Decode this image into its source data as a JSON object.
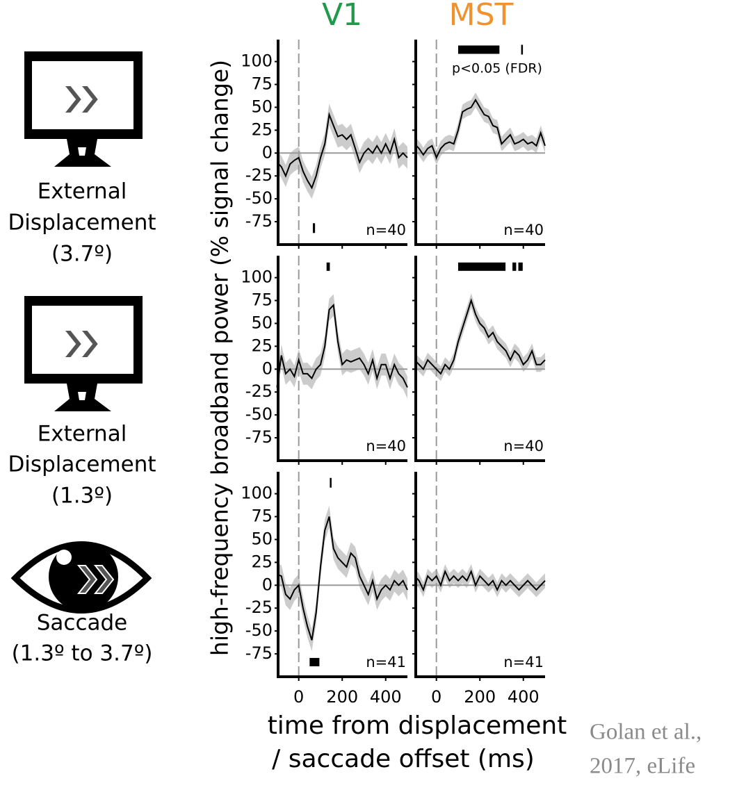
{
  "column_titles": [
    {
      "text": "V1",
      "color": "#1f9a4b"
    },
    {
      "text": "MST",
      "color": "#f0922e"
    }
  ],
  "row_labels": [
    [
      "External",
      "Displacement",
      "(3.7º)"
    ],
    [
      "External",
      "Displacement",
      "(1.3º)"
    ],
    [
      "Saccade",
      "(1.3º to 3.7º)"
    ]
  ],
  "y_label": "high-frequency broadband power (% signal change)",
  "x_label": [
    "time from displacement",
    "/ saccade offset (ms)"
  ],
  "citation": [
    "Golan et al.,",
    "2017, eLife"
  ],
  "chart_data": [
    {
      "type": "line",
      "annotation": "n=40",
      "color": "#000000",
      "band_color": "#cccccc",
      "x": [
        -100,
        -80,
        -60,
        -40,
        -20,
        0,
        20,
        40,
        60,
        80,
        100,
        120,
        140,
        160,
        180,
        200,
        220,
        240,
        260,
        280,
        300,
        320,
        340,
        360,
        380,
        400,
        420,
        440,
        460,
        480,
        500
      ],
      "values": [
        -10,
        -15,
        -25,
        -12,
        -8,
        -5,
        -20,
        -30,
        -38,
        -25,
        -5,
        10,
        42,
        30,
        18,
        20,
        15,
        20,
        5,
        -10,
        0,
        5,
        0,
        8,
        0,
        10,
        0,
        15,
        -5,
        0,
        -5
      ],
      "errors": [
        12,
        12,
        12,
        12,
        12,
        12,
        12,
        12,
        12,
        12,
        12,
        12,
        12,
        12,
        12,
        12,
        12,
        12,
        12,
        12,
        12,
        12,
        12,
        12,
        12,
        12,
        12,
        12,
        12,
        12,
        12
      ],
      "significance": [
        [
          65,
          75
        ]
      ],
      "significance_y": -82,
      "xlim": [
        -95,
        500
      ],
      "xticks": [
        0,
        200,
        400
      ],
      "ylim": [
        -100,
        124
      ],
      "yticks": [
        -75,
        -50,
        -25,
        0,
        25,
        50,
        75,
        100
      ]
    },
    {
      "type": "line",
      "annotation": "n=40",
      "color": "#000000",
      "band_color": "#cccccc",
      "significance_label": "p<0.05 (FDR)",
      "x": [
        -100,
        -80,
        -60,
        -40,
        -20,
        0,
        20,
        40,
        60,
        80,
        100,
        120,
        140,
        160,
        180,
        200,
        220,
        240,
        260,
        280,
        300,
        320,
        340,
        360,
        380,
        400,
        420,
        440,
        460,
        480,
        500
      ],
      "values": [
        10,
        5,
        -2,
        5,
        8,
        -5,
        5,
        10,
        12,
        10,
        25,
        45,
        48,
        50,
        58,
        50,
        42,
        40,
        30,
        28,
        10,
        15,
        20,
        10,
        12,
        15,
        10,
        12,
        8,
        22,
        8
      ],
      "errors": [
        8,
        8,
        8,
        8,
        8,
        8,
        8,
        8,
        8,
        8,
        8,
        8,
        8,
        8,
        8,
        8,
        8,
        8,
        8,
        8,
        8,
        8,
        8,
        8,
        8,
        8,
        8,
        8,
        8,
        8,
        8
      ],
      "significance": [
        [
          100,
          290
        ],
        [
          390,
          396
        ]
      ],
      "significance_y": 113,
      "xlim": [
        -95,
        500
      ],
      "xticks": [
        0,
        200,
        400
      ],
      "ylim": [
        -100,
        124
      ],
      "yticks": [
        -75,
        -50,
        -25,
        0,
        25,
        50,
        75,
        100
      ]
    },
    {
      "type": "line",
      "annotation": "n=40",
      "color": "#000000",
      "band_color": "#cccccc",
      "x": [
        -100,
        -80,
        -60,
        -40,
        -20,
        0,
        20,
        40,
        60,
        80,
        100,
        120,
        140,
        160,
        180,
        200,
        220,
        240,
        260,
        280,
        300,
        320,
        340,
        360,
        380,
        400,
        420,
        440,
        460,
        480,
        500
      ],
      "values": [
        -20,
        15,
        -5,
        0,
        -8,
        10,
        -5,
        -5,
        -10,
        0,
        5,
        25,
        65,
        70,
        30,
        5,
        10,
        8,
        10,
        12,
        5,
        -5,
        10,
        -10,
        5,
        5,
        -10,
        5,
        -5,
        -10,
        -20
      ],
      "errors": [
        12,
        12,
        12,
        12,
        12,
        12,
        12,
        12,
        12,
        12,
        12,
        12,
        12,
        12,
        12,
        12,
        12,
        12,
        12,
        12,
        12,
        12,
        12,
        12,
        12,
        12,
        12,
        12,
        12,
        12,
        12
      ],
      "significance": [
        [
          128,
          143
        ]
      ],
      "significance_y": 112,
      "xlim": [
        -95,
        500
      ],
      "xticks": [
        0,
        200,
        400
      ],
      "ylim": [
        -100,
        124
      ],
      "yticks": [
        -75,
        -50,
        -25,
        0,
        25,
        50,
        75,
        100
      ]
    },
    {
      "type": "line",
      "annotation": "n=40",
      "color": "#000000",
      "band_color": "#cccccc",
      "x": [
        -100,
        -80,
        -60,
        -40,
        -20,
        0,
        20,
        40,
        60,
        80,
        100,
        120,
        140,
        160,
        180,
        200,
        220,
        240,
        260,
        280,
        300,
        320,
        340,
        360,
        380,
        400,
        420,
        440,
        460,
        480,
        500
      ],
      "values": [
        10,
        5,
        0,
        10,
        5,
        0,
        -5,
        5,
        0,
        10,
        30,
        45,
        60,
        75,
        60,
        50,
        45,
        35,
        40,
        30,
        25,
        20,
        10,
        20,
        15,
        5,
        10,
        20,
        5,
        5,
        10
      ],
      "errors": [
        8,
        8,
        8,
        8,
        8,
        8,
        8,
        8,
        8,
        8,
        8,
        8,
        8,
        8,
        8,
        8,
        8,
        8,
        8,
        8,
        8,
        8,
        8,
        8,
        8,
        8,
        8,
        8,
        8,
        8,
        8
      ],
      "significance": [
        [
          100,
          318
        ],
        [
          350,
          367
        ],
        [
          377,
          397
        ]
      ],
      "significance_y": 112,
      "xlim": [
        -95,
        500
      ],
      "xticks": [
        0,
        200,
        400
      ],
      "ylim": [
        -100,
        124
      ],
      "yticks": [
        -75,
        -50,
        -25,
        0,
        25,
        50,
        75,
        100
      ]
    },
    {
      "type": "line",
      "annotation": "n=41",
      "color": "#000000",
      "band_color": "#cccccc",
      "x": [
        -100,
        -80,
        -60,
        -40,
        -20,
        0,
        20,
        40,
        60,
        80,
        100,
        120,
        140,
        160,
        180,
        200,
        220,
        240,
        260,
        280,
        300,
        320,
        340,
        360,
        380,
        400,
        420,
        440,
        460,
        480,
        500
      ],
      "values": [
        12,
        10,
        -10,
        -15,
        -5,
        0,
        -25,
        -45,
        -60,
        -30,
        20,
        60,
        75,
        40,
        30,
        25,
        20,
        35,
        30,
        10,
        0,
        -10,
        5,
        -15,
        -5,
        0,
        -5,
        5,
        0,
        5,
        -5
      ],
      "errors": [
        12,
        12,
        12,
        12,
        12,
        12,
        12,
        12,
        12,
        12,
        12,
        12,
        12,
        12,
        12,
        12,
        12,
        12,
        12,
        12,
        12,
        12,
        12,
        12,
        12,
        12,
        12,
        12,
        12,
        12,
        12
      ],
      "significance": [
        [
          143,
          147
        ],
        [
          50,
          95
        ]
      ],
      "significance_y": [
        112,
        -84
      ],
      "xlim": [
        -95,
        500
      ],
      "xticks": [
        0,
        200,
        400
      ],
      "ylim": [
        -100,
        124
      ],
      "yticks": [
        -75,
        -50,
        -25,
        0,
        25,
        50,
        75,
        100
      ]
    },
    {
      "type": "line",
      "annotation": "n=41",
      "color": "#000000",
      "band_color": "#cccccc",
      "x": [
        -100,
        -80,
        -60,
        -40,
        -20,
        0,
        20,
        40,
        60,
        80,
        100,
        120,
        140,
        160,
        180,
        200,
        220,
        240,
        260,
        280,
        300,
        320,
        340,
        360,
        380,
        400,
        420,
        440,
        460,
        480,
        500
      ],
      "values": [
        10,
        5,
        -5,
        10,
        5,
        10,
        0,
        15,
        5,
        10,
        5,
        10,
        5,
        15,
        0,
        10,
        5,
        0,
        5,
        -5,
        5,
        0,
        5,
        0,
        -5,
        0,
        5,
        0,
        -5,
        0,
        5
      ],
      "errors": [
        8,
        8,
        8,
        8,
        8,
        8,
        8,
        8,
        8,
        8,
        8,
        8,
        8,
        8,
        8,
        8,
        8,
        8,
        8,
        8,
        8,
        8,
        8,
        8,
        8,
        8,
        8,
        8,
        8,
        8,
        8
      ],
      "significance": [],
      "significance_y": 0,
      "xlim": [
        -95,
        500
      ],
      "xticks": [
        0,
        200,
        400
      ],
      "ylim": [
        -100,
        124
      ],
      "yticks": [
        -75,
        -50,
        -25,
        0,
        25,
        50,
        75,
        100
      ]
    }
  ]
}
